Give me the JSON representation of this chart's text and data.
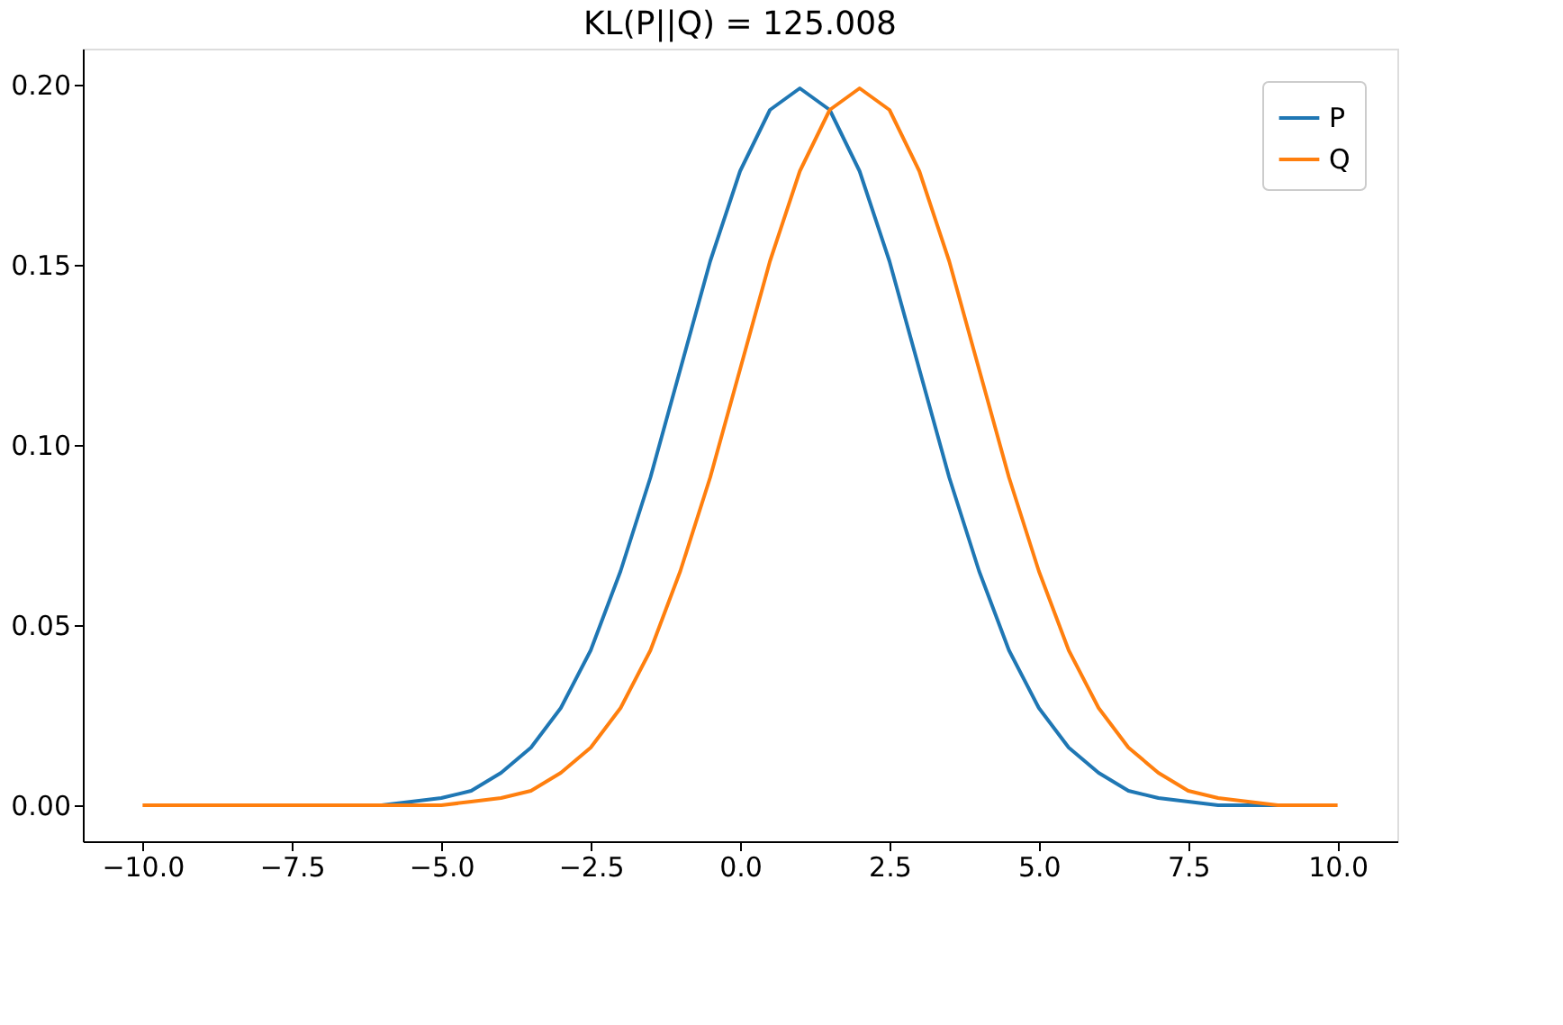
{
  "chart_data": {
    "type": "line",
    "title": "KL(P||Q) = 125.008",
    "x": [
      -10,
      -9.5,
      -9,
      -8.5,
      -8,
      -7.5,
      -7,
      -6.5,
      -6,
      -5.5,
      -5,
      -4.5,
      -4,
      -3.5,
      -3,
      -2.5,
      -2,
      -1.5,
      -1,
      -0.5,
      0,
      0.5,
      1,
      1.5,
      2,
      2.5,
      3,
      3.5,
      4,
      4.5,
      5,
      5.5,
      6,
      6.5,
      7,
      7.5,
      8,
      8.5,
      9,
      9.5,
      10
    ],
    "series": [
      {
        "name": "P",
        "color": "#1f77b4",
        "values": [
          null,
          null,
          null,
          null,
          null,
          null,
          null,
          null,
          0,
          0.001,
          0.002,
          0.004,
          0.009,
          0.016,
          0.027,
          0.043,
          0.065,
          0.091,
          0.121,
          0.151,
          0.176,
          0.193,
          0.199,
          0.193,
          0.176,
          0.151,
          0.121,
          0.091,
          0.065,
          0.043,
          0.027,
          0.016,
          0.009,
          0.004,
          0.002,
          0.001,
          0,
          0,
          0,
          null,
          null
        ]
      },
      {
        "name": "Q",
        "color": "#ff7f0e",
        "values": [
          0,
          0,
          0,
          0,
          0,
          0,
          0,
          0,
          0,
          0,
          0,
          0.001,
          0.002,
          0.004,
          0.009,
          0.016,
          0.027,
          0.043,
          0.065,
          0.091,
          0.121,
          0.151,
          0.176,
          0.193,
          0.199,
          0.193,
          0.176,
          0.151,
          0.121,
          0.091,
          0.065,
          0.043,
          0.027,
          0.016,
          0.009,
          0.004,
          0.002,
          0.001,
          0,
          0,
          0
        ]
      }
    ],
    "xlim": [
      -11,
      11
    ],
    "xticks": [
      {
        "value": -10,
        "label": "−10.0"
      },
      {
        "value": -7.5,
        "label": "−7.5"
      },
      {
        "value": -5,
        "label": "−5.0"
      },
      {
        "value": -2.5,
        "label": "−2.5"
      },
      {
        "value": 0,
        "label": "0.0"
      },
      {
        "value": 2.5,
        "label": "2.5"
      },
      {
        "value": 5,
        "label": "5.0"
      },
      {
        "value": 7.5,
        "label": "7.5"
      },
      {
        "value": 10,
        "label": "10.0"
      }
    ],
    "ylim": [
      -0.01,
      0.21
    ],
    "yticks": [
      {
        "value": 0,
        "label": "0.00"
      },
      {
        "value": 0.05,
        "label": "0.05"
      },
      {
        "value": 0.1,
        "label": "0.10"
      },
      {
        "value": 0.15,
        "label": "0.15"
      },
      {
        "value": 0.2,
        "label": "0.20"
      }
    ],
    "legend": "top right",
    "grid": false,
    "marker": "none",
    "line_style": "solid"
  }
}
